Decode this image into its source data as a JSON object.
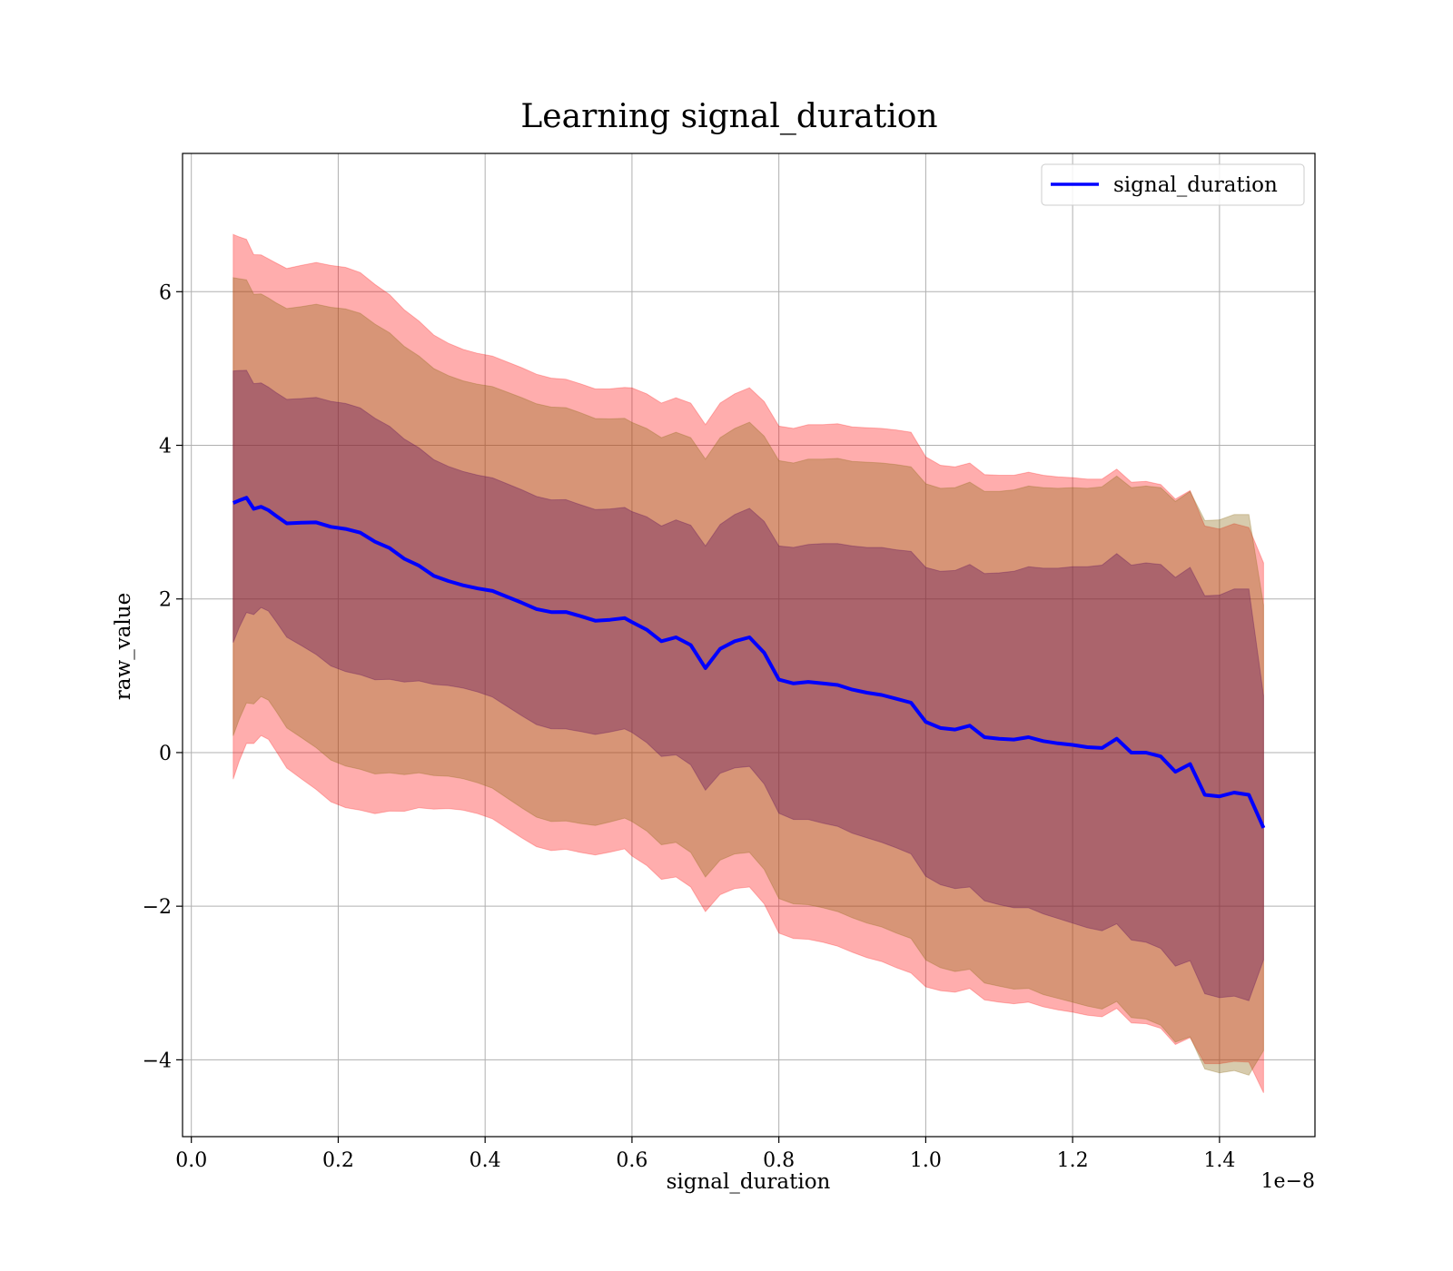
{
  "chart_data": {
    "type": "line",
    "title": "Learning signal_duration",
    "xlabel": "signal_duration",
    "ylabel": "raw_value",
    "x_offset_label": "1e−8",
    "xlim": [
      -0.012,
      1.53
    ],
    "ylim": [
      -5.0,
      7.8
    ],
    "x_ticks": [
      0.0,
      0.2,
      0.4,
      0.6,
      0.8,
      1.0,
      1.2,
      1.4
    ],
    "x_tick_labels": [
      "0.0",
      "0.2",
      "0.4",
      "0.6",
      "0.8",
      "1.0",
      "1.2",
      "1.4"
    ],
    "y_ticks": [
      -4,
      -2,
      0,
      2,
      4,
      6
    ],
    "y_tick_labels": [
      "−4",
      "−2",
      "0",
      "2",
      "4",
      "6"
    ],
    "grid": true,
    "legend_position": "top-right",
    "colors": {
      "mean_line": "#0000ff",
      "band_outer": "#ff0000",
      "band_middle": "#8b6914",
      "band_inner": "#5a0a5a"
    },
    "series": [
      {
        "name": "signal_duration",
        "x": [
          0.057,
          0.065,
          0.075,
          0.085,
          0.095,
          0.105,
          0.115,
          0.13,
          0.15,
          0.17,
          0.19,
          0.21,
          0.23,
          0.25,
          0.27,
          0.29,
          0.31,
          0.33,
          0.35,
          0.37,
          0.39,
          0.41,
          0.43,
          0.45,
          0.47,
          0.49,
          0.51,
          0.53,
          0.55,
          0.57,
          0.59,
          0.6,
          0.62,
          0.64,
          0.66,
          0.68,
          0.7,
          0.72,
          0.74,
          0.76,
          0.78,
          0.8,
          0.82,
          0.84,
          0.86,
          0.88,
          0.9,
          0.92,
          0.94,
          0.96,
          0.98,
          1.0,
          1.02,
          1.04,
          1.06,
          1.08,
          1.1,
          1.12,
          1.14,
          1.16,
          1.18,
          1.2,
          1.22,
          1.24,
          1.26,
          1.28,
          1.3,
          1.32,
          1.34,
          1.36,
          1.38,
          1.4,
          1.42,
          1.44,
          1.46
        ],
        "y": [
          3.2,
          3.3,
          3.4,
          3.3,
          3.35,
          3.3,
          3.2,
          3.05,
          3.0,
          2.95,
          2.85,
          2.8,
          2.75,
          2.65,
          2.6,
          2.5,
          2.45,
          2.35,
          2.3,
          2.25,
          2.2,
          2.15,
          2.05,
          1.95,
          1.85,
          1.8,
          1.8,
          1.75,
          1.7,
          1.72,
          1.75,
          1.7,
          1.6,
          1.45,
          1.5,
          1.4,
          1.1,
          1.35,
          1.45,
          1.5,
          1.3,
          0.95,
          0.9,
          0.92,
          0.9,
          0.88,
          0.82,
          0.78,
          0.75,
          0.7,
          0.65,
          0.4,
          0.32,
          0.3,
          0.35,
          0.2,
          0.18,
          0.17,
          0.2,
          0.15,
          0.12,
          0.1,
          0.07,
          0.06,
          0.18,
          0.0,
          0.0,
          -0.05,
          -0.25,
          -0.15,
          -0.55,
          -0.57,
          -0.52,
          -0.55,
          -0.98
        ],
        "band_inner_half_width": [
          1.7,
          1.7,
          1.69,
          1.68,
          1.67,
          1.66,
          1.65,
          1.64,
          1.62,
          1.61,
          1.6,
          1.59,
          1.58,
          1.57,
          1.56,
          1.55,
          1.54,
          1.53,
          1.52,
          1.51,
          1.5,
          1.49,
          1.48,
          1.47,
          1.46,
          1.45,
          1.45,
          1.44,
          1.44,
          1.44,
          1.44,
          1.44,
          1.47,
          1.5,
          1.53,
          1.56,
          1.59,
          1.62,
          1.65,
          1.68,
          1.71,
          1.74,
          1.77,
          1.79,
          1.82,
          1.84,
          1.87,
          1.89,
          1.92,
          1.94,
          1.97,
          2.01,
          2.04,
          2.07,
          2.1,
          2.13,
          2.16,
          2.19,
          2.22,
          2.25,
          2.28,
          2.32,
          2.35,
          2.38,
          2.41,
          2.44,
          2.47,
          2.5,
          2.53,
          2.56,
          2.59,
          2.62,
          2.65,
          2.68,
          1.72
        ],
        "band_middle_half_width": [
          2.9,
          2.9,
          2.89,
          2.88,
          2.87,
          2.86,
          2.85,
          2.84,
          2.82,
          2.81,
          2.8,
          2.79,
          2.78,
          2.77,
          2.76,
          2.75,
          2.74,
          2.73,
          2.72,
          2.71,
          2.7,
          2.69,
          2.68,
          2.67,
          2.66,
          2.65,
          2.64,
          2.63,
          2.62,
          2.61,
          2.6,
          2.6,
          2.62,
          2.65,
          2.67,
          2.7,
          2.72,
          2.75,
          2.77,
          2.8,
          2.82,
          2.85,
          2.87,
          2.9,
          2.92,
          2.95,
          2.97,
          3.0,
          3.02,
          3.05,
          3.07,
          3.1,
          3.12,
          3.15,
          3.17,
          3.2,
          3.22,
          3.25,
          3.27,
          3.3,
          3.32,
          3.35,
          3.37,
          3.4,
          3.42,
          3.45,
          3.47,
          3.5,
          3.52,
          3.55,
          3.57,
          3.6,
          3.62,
          3.65,
          2.9
        ],
        "band_outer_half_width": [
          3.45,
          3.45,
          3.44,
          3.43,
          3.42,
          3.41,
          3.4,
          3.38,
          3.36,
          3.34,
          3.32,
          3.3,
          3.28,
          3.26,
          3.24,
          3.22,
          3.2,
          3.18,
          3.16,
          3.14,
          3.12,
          3.1,
          3.08,
          3.06,
          3.04,
          3.02,
          3.0,
          3.0,
          3.0,
          3.0,
          3.0,
          3.05,
          3.07,
          3.1,
          3.12,
          3.15,
          3.17,
          3.2,
          3.22,
          3.25,
          3.27,
          3.3,
          3.32,
          3.35,
          3.37,
          3.4,
          3.42,
          3.45,
          3.47,
          3.5,
          3.52,
          3.45,
          3.42,
          3.42,
          3.42,
          3.42,
          3.43,
          3.44,
          3.45,
          3.46,
          3.47,
          3.48,
          3.49,
          3.5,
          3.51,
          3.52,
          3.53,
          3.54,
          3.55,
          3.56,
          3.5,
          3.48,
          3.5,
          3.48,
          3.45
        ]
      }
    ]
  }
}
